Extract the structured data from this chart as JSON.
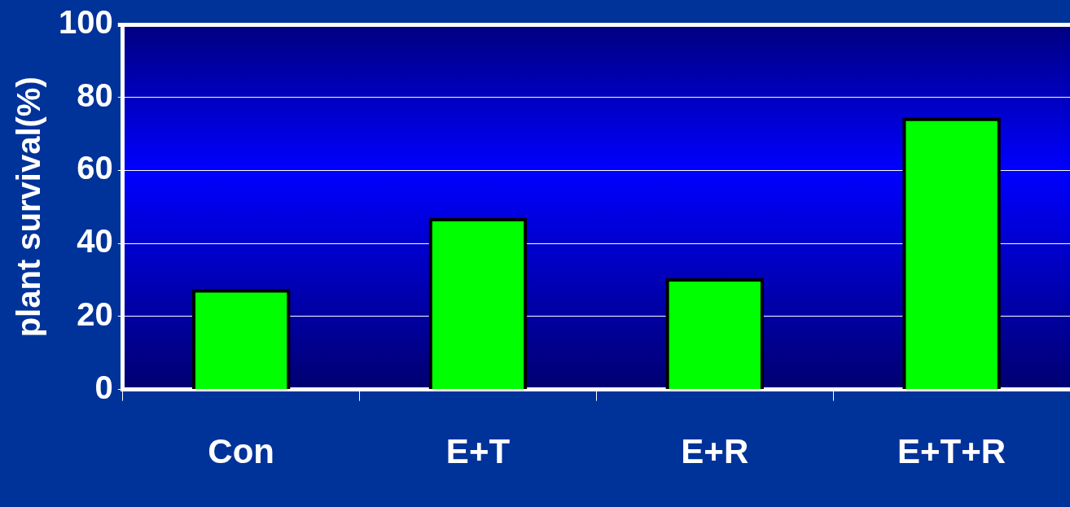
{
  "chart_data": {
    "type": "bar",
    "ylabel": "plant survival(%)",
    "categories": [
      "Con",
      "E+T",
      "E+R",
      "E+T+R"
    ],
    "values": [
      27,
      46.5,
      30,
      74
    ],
    "color": "#00ff00",
    "ylim": [
      0,
      100
    ],
    "yticks": [
      0,
      20,
      40,
      60,
      80,
      100
    ],
    "grid": "y",
    "legend": false
  }
}
